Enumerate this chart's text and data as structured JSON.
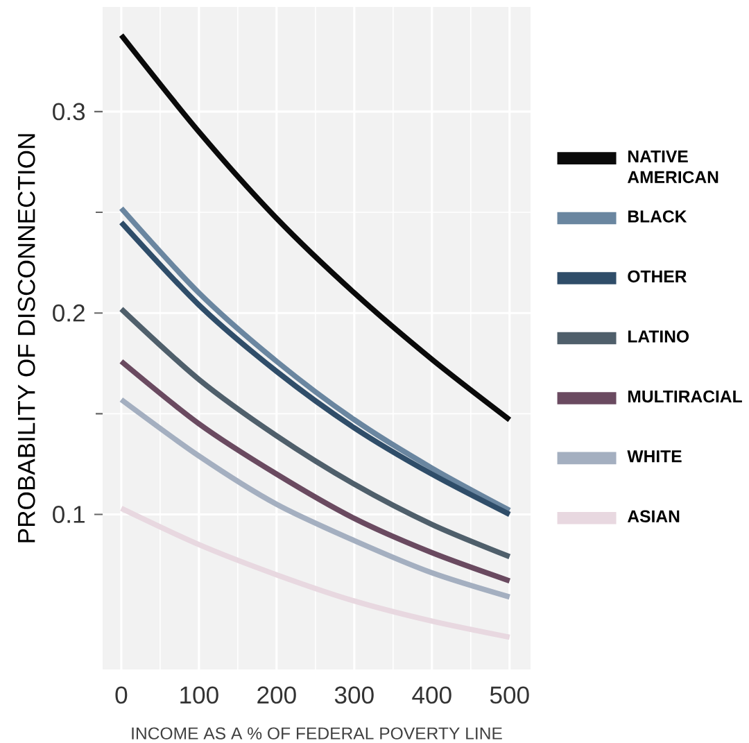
{
  "chart_data": {
    "type": "line",
    "xlabel": "INCOME AS A % OF FEDERAL POVERTY LINE",
    "ylabel": "PROBABILITY OF DISCONNECTION",
    "x": [
      0,
      100,
      200,
      300,
      400,
      500
    ],
    "series": [
      {
        "name": "NATIVE AMERICAN",
        "color": "#0a0a0a",
        "values": [
          0.338,
          0.29,
          0.247,
          0.21,
          0.177,
          0.147
        ]
      },
      {
        "name": "BLACK",
        "color": "#6a86a0",
        "values": [
          0.252,
          0.21,
          0.176,
          0.147,
          0.123,
          0.102
        ]
      },
      {
        "name": "OTHER",
        "color": "#2f4d69",
        "values": [
          0.245,
          0.204,
          0.171,
          0.143,
          0.12,
          0.1
        ]
      },
      {
        "name": "LATINO",
        "color": "#4f5f6b",
        "values": [
          0.202,
          0.167,
          0.139,
          0.115,
          0.095,
          0.079
        ]
      },
      {
        "name": "MULTIRACIAL",
        "color": "#6a4a60",
        "values": [
          0.176,
          0.145,
          0.12,
          0.098,
          0.081,
          0.067
        ]
      },
      {
        "name": "WHITE",
        "color": "#a4afc0",
        "values": [
          0.157,
          0.129,
          0.105,
          0.087,
          0.071,
          0.059
        ]
      },
      {
        "name": "ASIAN",
        "color": "#e8d8e0",
        "values": [
          0.103,
          0.085,
          0.07,
          0.057,
          0.047,
          0.039
        ]
      }
    ],
    "xlim": [
      -24,
      527
    ],
    "ylim": [
      0.023,
      0.352
    ],
    "xticks": [
      0,
      100,
      200,
      300,
      400,
      500
    ],
    "yticks": [
      0.1,
      0.2,
      0.3
    ],
    "grid": true,
    "legend": "right"
  }
}
